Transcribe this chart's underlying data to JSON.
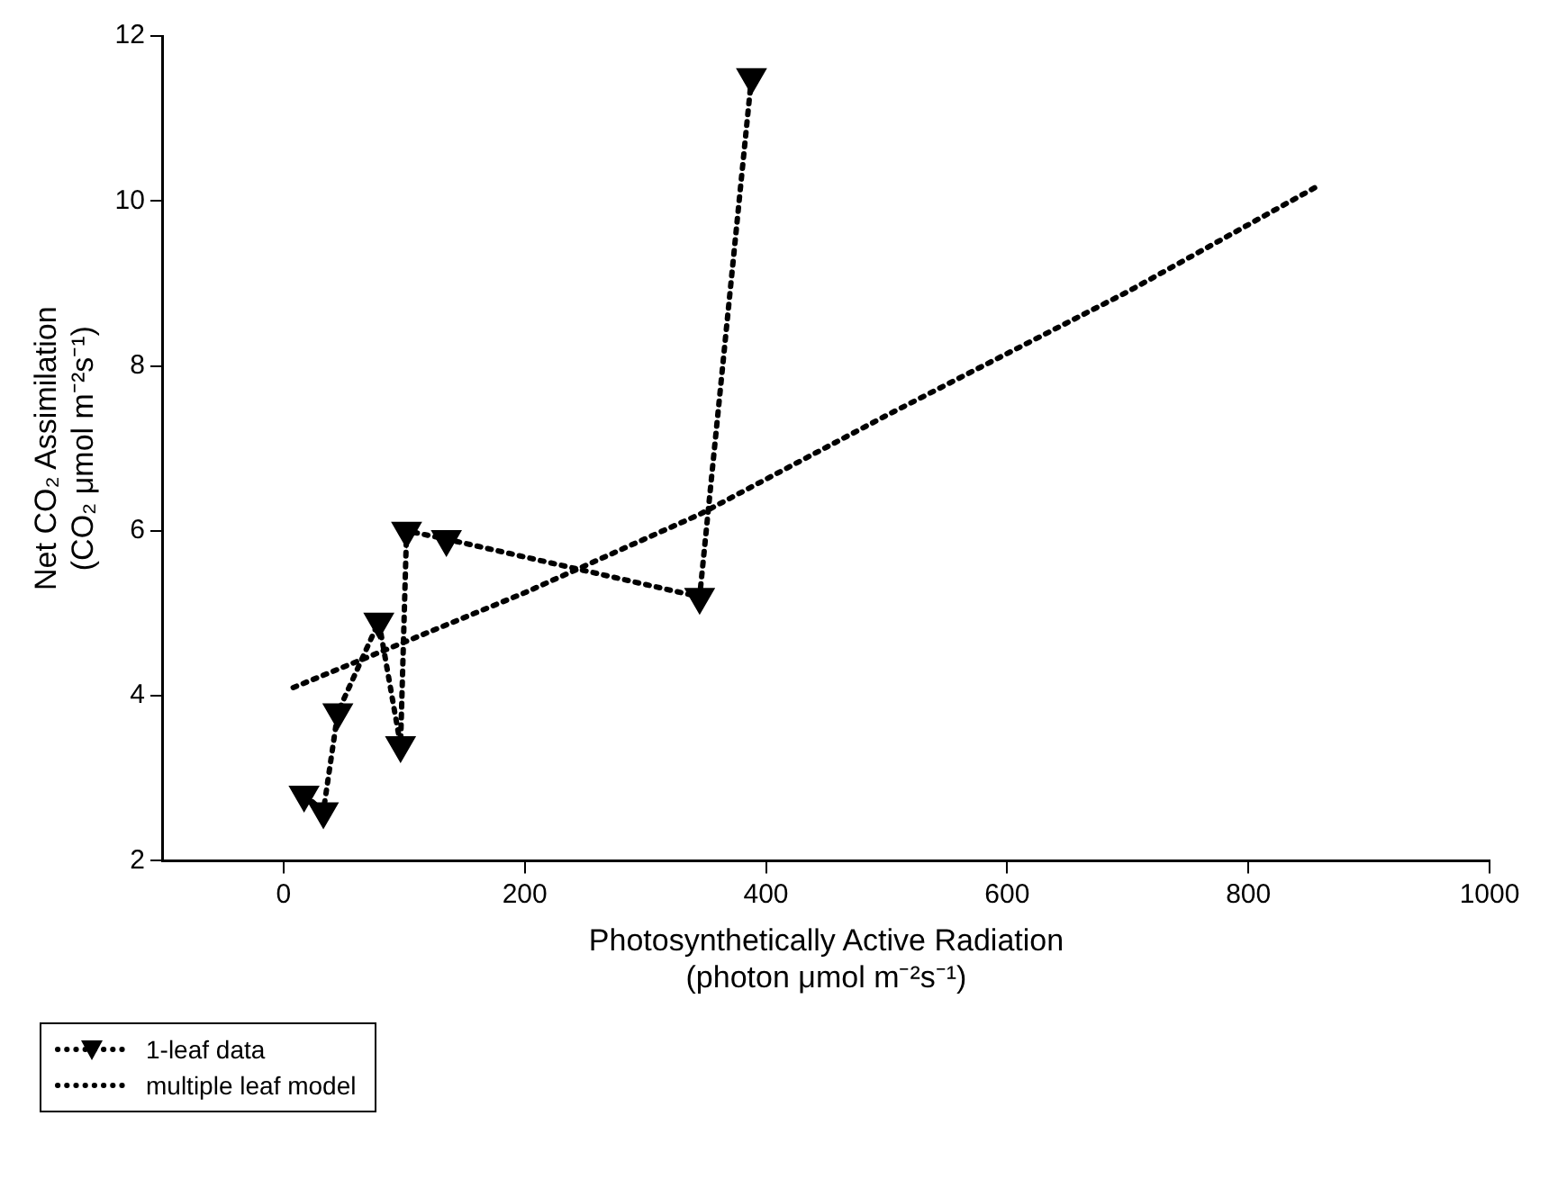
{
  "chart_data": {
    "type": "line",
    "xlabel": "Photosynthetically Active Radiation\n(photon μmol m⁻²s⁻¹)",
    "ylabel": "Net CO₂ Assimilation\n(CO₂ μmol m⁻²s⁻¹)",
    "xlim": [
      -100,
      1000
    ],
    "xticks": [
      0,
      200,
      400,
      600,
      800,
      1000
    ],
    "ylim": [
      2,
      12
    ],
    "yticks": [
      2,
      4,
      6,
      8,
      10,
      12
    ],
    "grid": false,
    "legend": "bottom left",
    "line_style": "dotted",
    "series": [
      {
        "name": "1-leaf data",
        "color": "#000000",
        "marker": "triangle",
        "x": [
          17,
          33,
          45,
          79,
          97,
          102,
          135,
          345,
          388
        ],
        "values": [
          2.8,
          2.6,
          3.8,
          4.9,
          3.4,
          6.0,
          5.9,
          5.2,
          11.5
        ]
      },
      {
        "name": "multiple leaf model",
        "color": "#000000",
        "marker": "none",
        "x": [
          8,
          100,
          200,
          345,
          500,
          700,
          860
        ],
        "values": [
          4.1,
          4.65,
          5.25,
          6.2,
          7.4,
          8.9,
          10.2
        ]
      }
    ]
  }
}
